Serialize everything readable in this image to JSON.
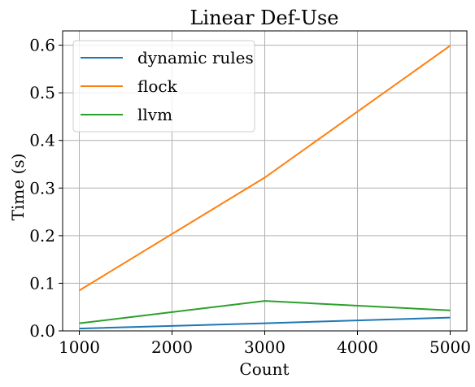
{
  "chart_data": {
    "type": "line",
    "title": "Linear Def-Use",
    "xlabel": "Count",
    "ylabel": "Time (s)",
    "x": [
      1000,
      3000,
      5000
    ],
    "xlim": [
      820,
      5180
    ],
    "ylim": [
      0,
      0.63
    ],
    "xticks": [
      "1000",
      "2000",
      "3000",
      "4000",
      "5000"
    ],
    "yticks": [
      "0.0",
      "0.1",
      "0.2",
      "0.3",
      "0.4",
      "0.5",
      "0.6"
    ],
    "grid": true,
    "legend_position": "top-left",
    "series": [
      {
        "name": "dynamic rules",
        "color": "#1f77b4",
        "values": [
          0.005,
          0.016,
          0.028
        ]
      },
      {
        "name": "flock",
        "color": "#ff7f0e",
        "values": [
          0.085,
          0.322,
          0.599
        ]
      },
      {
        "name": "llvm",
        "color": "#2ca02c",
        "values": [
          0.016,
          0.063,
          0.043
        ]
      }
    ]
  }
}
